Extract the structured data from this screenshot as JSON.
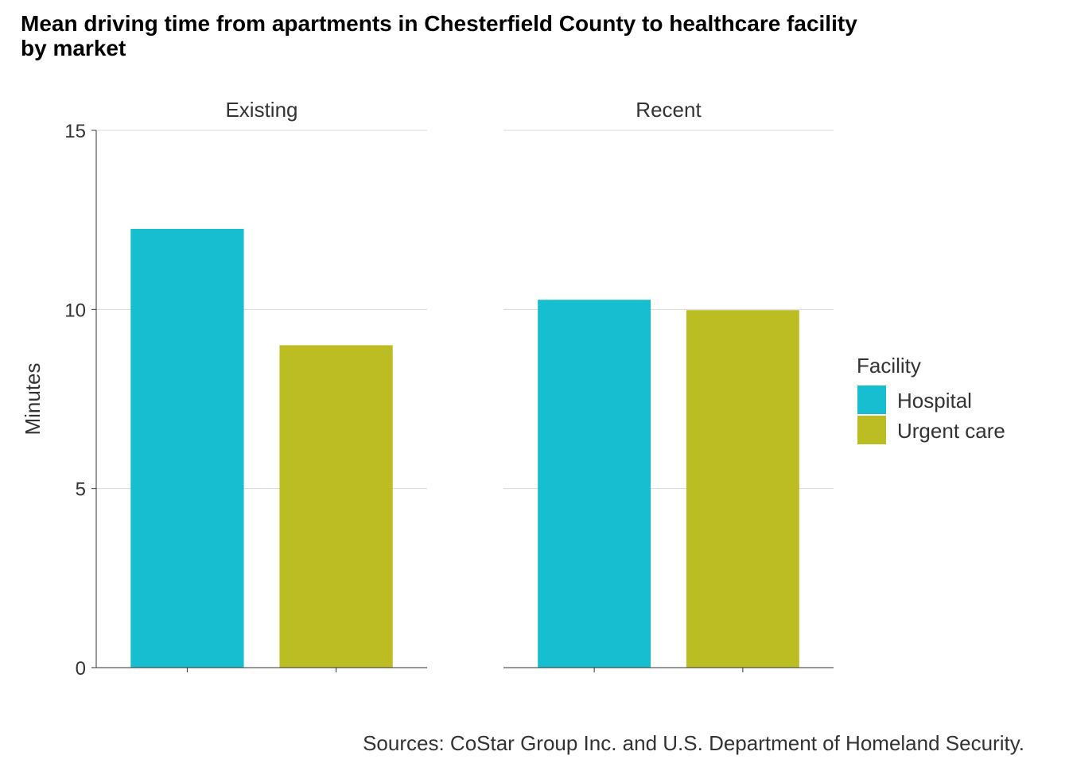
{
  "chart_data": {
    "type": "bar",
    "title": "Mean driving time from apartments in Chesterfield County to healthcare facility",
    "title_line2": "by market",
    "ylabel": "Minutes",
    "xlabel": "",
    "ylim": [
      0,
      15
    ],
    "yticks": [
      0,
      5,
      10,
      15
    ],
    "grid": true,
    "legend": {
      "title": "Facility",
      "placement": "right"
    },
    "caption": "Sources: CoStar Group Inc. and U.S. Department of Homeland Security.",
    "facets": [
      {
        "name": "Existing",
        "values": [
          12.25,
          9.0
        ]
      },
      {
        "name": "Recent",
        "values": [
          10.27,
          9.98
        ]
      }
    ],
    "series": [
      {
        "name": "Hospital",
        "color": "#17becf"
      },
      {
        "name": "Urgent care",
        "color": "#bcbd22"
      }
    ]
  }
}
